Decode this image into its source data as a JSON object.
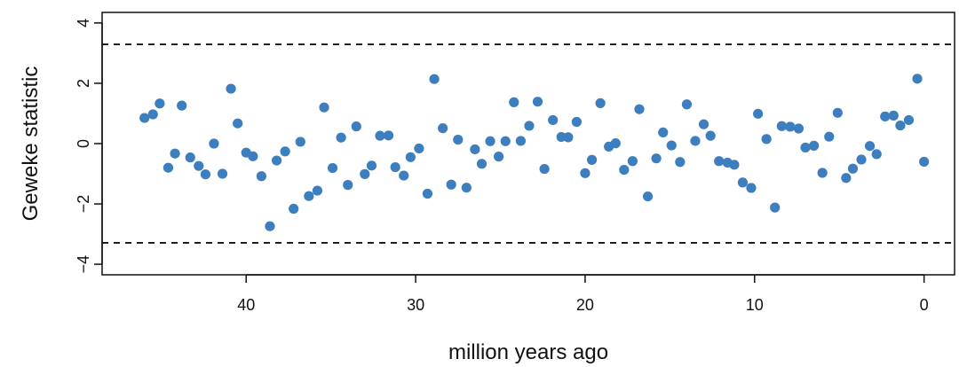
{
  "chart_data": {
    "type": "scatter",
    "title": "",
    "xlabel": "million years ago",
    "ylabel": "Geweke statistic",
    "xlim": [
      48.5,
      -1.8
    ],
    "ylim": [
      -4.35,
      4.35
    ],
    "x_ticks": [
      40,
      30,
      20,
      10,
      0
    ],
    "x_tick_labels": [
      "40",
      "30",
      "20",
      "10",
      "0"
    ],
    "y_ticks": [
      -4,
      -2,
      0,
      2,
      4
    ],
    "y_tick_labels": [
      "−4",
      "−2",
      "0",
      "2",
      "4"
    ],
    "reference_lines": [
      3.29,
      -3.29
    ],
    "grid": false,
    "point_color": "#3d7ebf",
    "series": [
      {
        "x": [
          46.0,
          45.5,
          45.1,
          44.6,
          44.2,
          43.8,
          43.3,
          42.8,
          42.4,
          41.9,
          41.4,
          40.9,
          40.5,
          40.0,
          39.6,
          39.1,
          38.6,
          38.2,
          37.7,
          37.2,
          36.8,
          36.3,
          35.8,
          35.4,
          34.9,
          34.4,
          34.0,
          33.5,
          33.0,
          32.6,
          32.1,
          31.6,
          31.2,
          30.7,
          30.3,
          29.8,
          29.3,
          28.9,
          28.4,
          27.9,
          27.5,
          27.0,
          26.5,
          26.1,
          25.6,
          25.1,
          24.7,
          24.2,
          23.8,
          23.3,
          22.8,
          22.4,
          21.9,
          21.4,
          21.0,
          20.5,
          20.0,
          19.6,
          19.1,
          18.6,
          18.2,
          17.7,
          17.2,
          16.8,
          16.3,
          15.8,
          15.4,
          14.9,
          14.4,
          14.0,
          13.5,
          13.0,
          12.6,
          12.1,
          11.6,
          11.2,
          10.7,
          10.2,
          9.8,
          9.3,
          8.8,
          8.4,
          7.9,
          7.4,
          7.0,
          6.5,
          6.0,
          5.6,
          5.1,
          4.6,
          4.2,
          3.7,
          3.2,
          2.8,
          2.3,
          1.8,
          1.4,
          0.9,
          0.4,
          0.0
        ],
        "y": [
          0.85,
          0.97,
          1.33,
          -0.8,
          -0.33,
          1.26,
          -0.46,
          -0.74,
          -1.02,
          0.0,
          -1.0,
          1.82,
          0.67,
          -0.3,
          -0.42,
          -1.08,
          -2.74,
          -0.56,
          -0.26,
          -2.16,
          0.06,
          -1.74,
          -1.56,
          1.2,
          -0.81,
          0.2,
          -1.37,
          0.57,
          -1.01,
          -0.73,
          0.26,
          0.27,
          -0.78,
          -1.06,
          -0.45,
          -0.16,
          -1.66,
          2.14,
          0.51,
          -1.36,
          0.13,
          -1.46,
          -0.19,
          -0.67,
          0.08,
          -0.43,
          0.08,
          1.37,
          0.09,
          0.59,
          1.39,
          -0.84,
          0.78,
          0.22,
          0.21,
          0.72,
          -0.98,
          -0.54,
          1.34,
          -0.1,
          0.01,
          -0.87,
          -0.58,
          1.14,
          -1.75,
          -0.49,
          0.37,
          -0.06,
          -0.61,
          1.3,
          0.09,
          0.64,
          0.26,
          -0.58,
          -0.63,
          -0.7,
          -1.29,
          -1.47,
          0.99,
          0.15,
          -2.12,
          0.58,
          0.56,
          0.5,
          -0.13,
          -0.07,
          -0.97,
          0.23,
          1.02,
          -1.14,
          -0.83,
          -0.53,
          -0.08,
          -0.35,
          0.9,
          0.93,
          0.6,
          0.78,
          2.15,
          -0.6
        ]
      }
    ]
  }
}
